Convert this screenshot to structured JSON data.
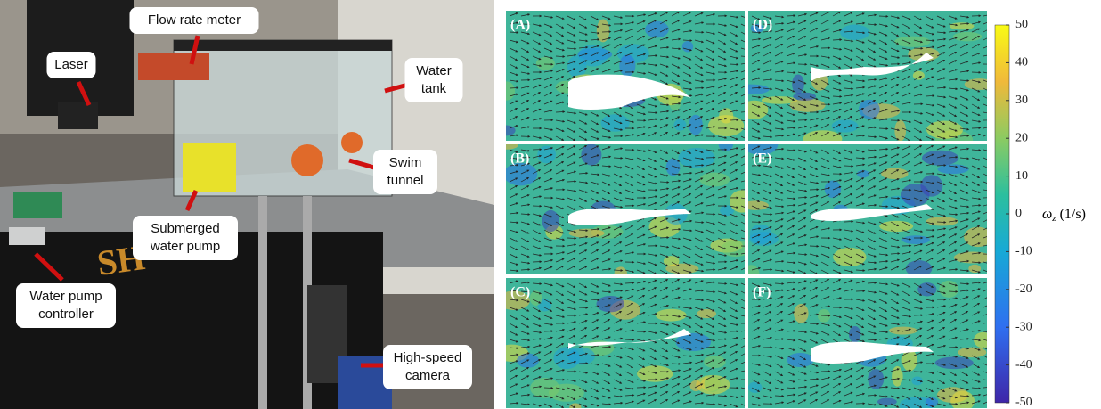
{
  "photo": {
    "labels": [
      {
        "lines": [
          "Flow rate meter"
        ]
      },
      {
        "lines": [
          "Laser"
        ]
      },
      {
        "lines": [
          "Water",
          "tank"
        ]
      },
      {
        "lines": [
          "Swim",
          "tunnel"
        ]
      },
      {
        "lines": [
          "Submerged",
          "water pump"
        ]
      },
      {
        "lines": [
          "Water pump",
          "controller"
        ]
      },
      {
        "lines": [
          "High-speed",
          "camera"
        ]
      }
    ]
  },
  "panels": [
    "(A)",
    "(D)",
    "(B)",
    "(E)",
    "(C)",
    "(F)"
  ],
  "colorbar": {
    "symbol": "ω",
    "subscript": "z",
    "unit": "(1/s)",
    "lim": [
      -50,
      50
    ],
    "ticks": [
      50,
      40,
      30,
      20,
      10,
      0,
      -10,
      -20,
      -30,
      -40,
      -50
    ]
  }
}
